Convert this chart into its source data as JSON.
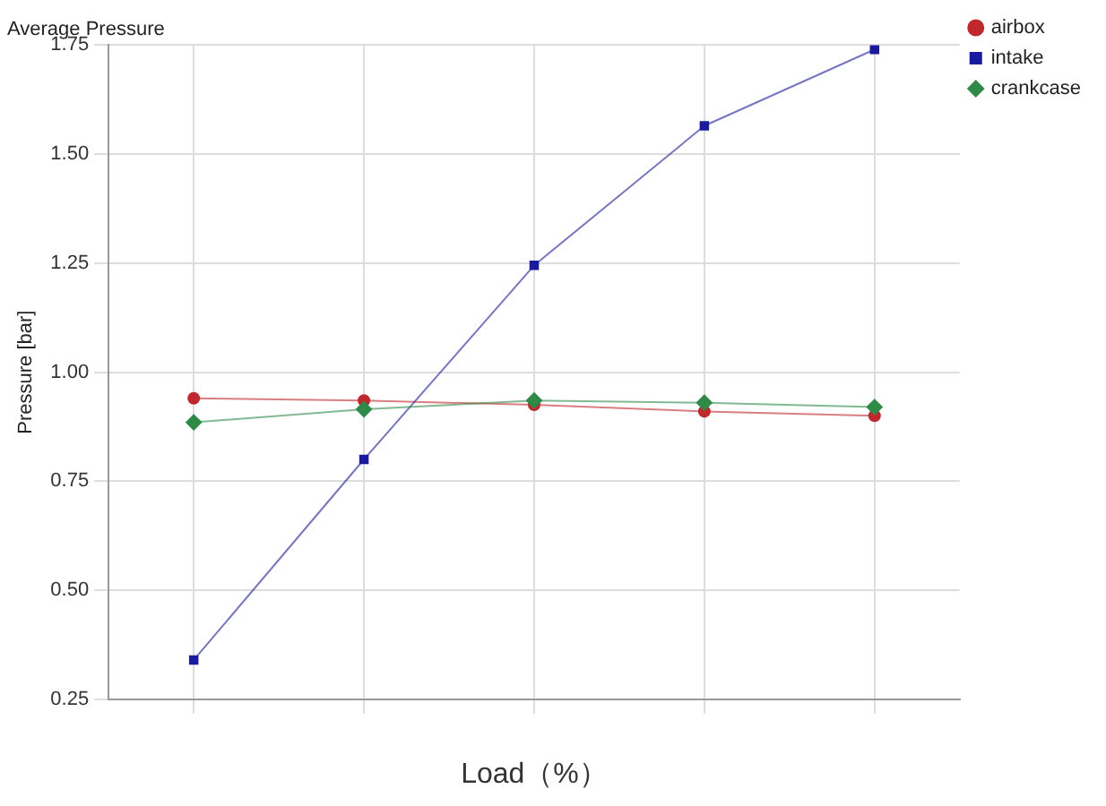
{
  "chart_data": {
    "type": "line",
    "title": "Average Pressure",
    "xlabel": "Load（%）",
    "ylabel": "Pressure [bar]",
    "categories": [
      null,
      null,
      null,
      null,
      null
    ],
    "series": [
      {
        "name": "airbox",
        "color": "#c0282d",
        "marker": "circle",
        "values": [
          0.94,
          0.935,
          0.925,
          0.91,
          0.9
        ]
      },
      {
        "name": "intake",
        "color": "#1a1aa0",
        "marker": "square",
        "values": [
          0.34,
          0.8,
          1.245,
          1.565,
          1.74
        ]
      },
      {
        "name": "crankcase",
        "color": "#2e8b47",
        "marker": "diamond",
        "values": [
          0.885,
          0.915,
          0.935,
          0.93,
          0.92
        ]
      }
    ],
    "ylim": [
      0.25,
      1.75
    ],
    "yticks": [
      0.25,
      {
        "value": 0.5,
        "label": "0.50"
      },
      0.75,
      {
        "value": 1,
        "label": "1.00"
      },
      1.25,
      {
        "value": 1.5,
        "label": "1.50"
      },
      1.75
    ],
    "grid": true,
    "legend": "right"
  }
}
